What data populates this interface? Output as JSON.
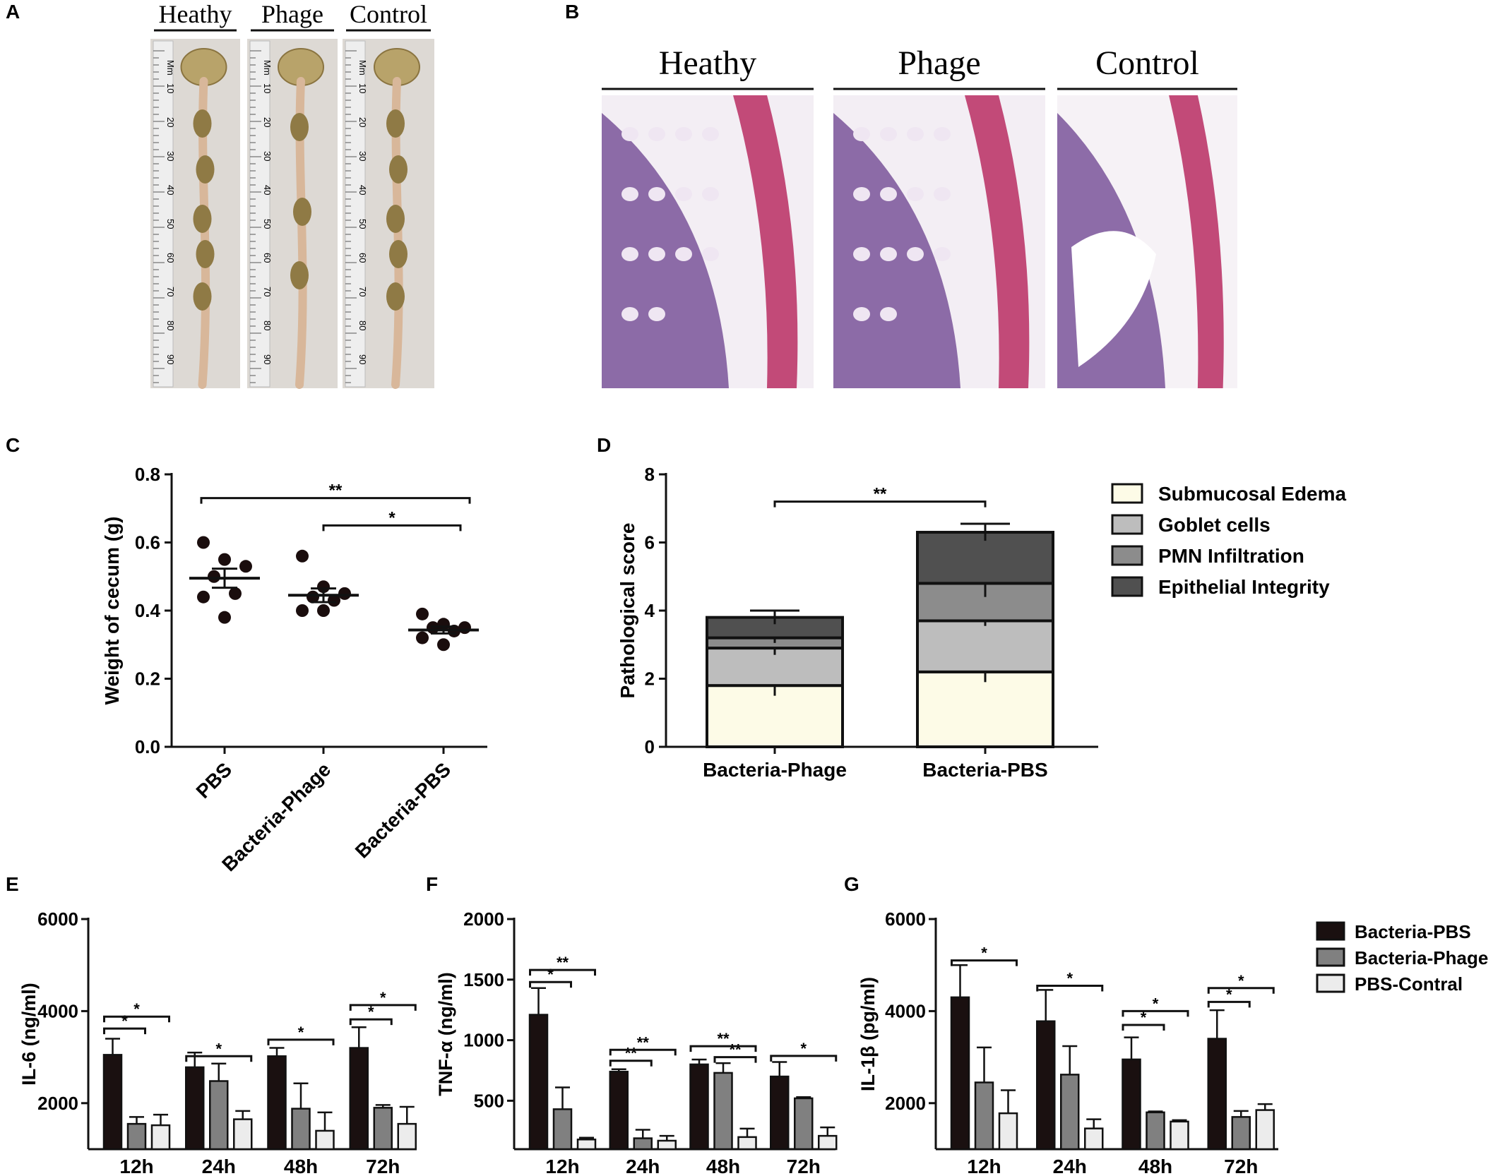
{
  "colors": {
    "ink": "#111111",
    "bacteria_pbs": "#1a1010",
    "bacteria_phage": "#808080",
    "pbs_control": "#ececec",
    "edema": "#fdfbe7",
    "goblet": "#bdbdbd",
    "pmn": "#8c8c8c",
    "epithelial": "#505050",
    "tissue_pink": "#c24a78",
    "tissue_purple": "#6a3f8e",
    "tissue_bg": "#f3eef4",
    "photo_bg": "#ddd9d4",
    "intestine": "#b8a36a"
  },
  "panels": {
    "A": {
      "letter": "A",
      "groups": [
        "Heathy",
        "Phage",
        "Control"
      ],
      "ruler_unit": "Mm",
      "ruler_ticks": [
        "10",
        "20",
        "30",
        "40",
        "50",
        "60",
        "70",
        "80",
        "90"
      ]
    },
    "B": {
      "letter": "B",
      "groups": [
        "Heathy",
        "Phage",
        "Control"
      ]
    },
    "C": {
      "letter": "C"
    },
    "D": {
      "letter": "D"
    },
    "E": {
      "letter": "E"
    },
    "F": {
      "letter": "F"
    },
    "G": {
      "letter": "G"
    }
  },
  "chart_data": [
    {
      "id": "C",
      "type": "scatter",
      "ylabel": "Weight of cecum (g)",
      "ylim": [
        0,
        0.8
      ],
      "yticks": [
        "0.0",
        "0.2",
        "0.4",
        "0.6",
        "0.8"
      ],
      "categories": [
        "PBS",
        "Bacteria-Phage",
        "Bacteria-PBS"
      ],
      "points": [
        [
          0.6,
          0.55,
          0.53,
          0.5,
          0.45,
          0.44,
          0.38
        ],
        [
          0.56,
          0.47,
          0.45,
          0.44,
          0.43,
          0.4,
          0.4
        ],
        [
          0.39,
          0.36,
          0.35,
          0.35,
          0.34,
          0.32,
          0.3
        ]
      ],
      "means": [
        0.495,
        0.445,
        0.343
      ],
      "sem": [
        0.028,
        0.02,
        0.01
      ],
      "significance": [
        {
          "from": 0,
          "to": 2,
          "y": 0.72,
          "label": "**"
        },
        {
          "from": 1,
          "to": 2,
          "y": 0.65,
          "label": "*"
        }
      ]
    },
    {
      "id": "D",
      "type": "bar",
      "stacked": true,
      "ylabel": "Pathological score",
      "ylim": [
        0,
        8
      ],
      "yticks": [
        "0",
        "2",
        "4",
        "6",
        "8"
      ],
      "categories": [
        "Bacteria-Phage",
        "Bacteria-PBS"
      ],
      "series": [
        {
          "name": "Submucosal Edema",
          "values": [
            1.8,
            2.2
          ],
          "err": [
            0.3,
            0.3
          ]
        },
        {
          "name": "Goblet cells",
          "values": [
            1.1,
            1.5
          ],
          "err": [
            0.2,
            0.15
          ]
        },
        {
          "name": "PMN Infiltration",
          "values": [
            0.3,
            1.1
          ],
          "err": [
            0.15,
            0.4
          ]
        },
        {
          "name": "Epithelial Integrity",
          "values": [
            0.6,
            1.5
          ],
          "err": [
            0.2,
            0.25
          ]
        }
      ],
      "legend_position": "right",
      "significance": [
        {
          "from": 0,
          "to": 1,
          "y": 7.2,
          "label": "**"
        }
      ]
    },
    {
      "id": "E",
      "type": "bar",
      "ylabel": "IL-6 (ng/ml)",
      "ylim": [
        1000,
        6000
      ],
      "yticks": [
        "2000",
        "4000",
        "6000"
      ],
      "categories": [
        "12h",
        "24h",
        "48h",
        "72h"
      ],
      "series": [
        {
          "name": "Bacteria-PBS",
          "values": [
            3050,
            2780,
            3020,
            3200
          ],
          "err": [
            350,
            320,
            180,
            450
          ]
        },
        {
          "name": "Bacteria-Phage",
          "values": [
            1550,
            2480,
            1880,
            1900
          ],
          "err": [
            150,
            380,
            550,
            60
          ]
        },
        {
          "name": "PBS-Contral",
          "values": [
            1520,
            1650,
            1400,
            1550
          ],
          "err": [
            230,
            180,
            400,
            370
          ]
        }
      ],
      "significance": [
        {
          "cat": 0,
          "from": 0,
          "to": 1,
          "y": 3620,
          "label": "*"
        },
        {
          "cat": 0,
          "from": 0,
          "to": 2,
          "y": 3880,
          "label": "*"
        },
        {
          "cat": 1,
          "from": 0,
          "to": 2,
          "y": 3020,
          "label": "*"
        },
        {
          "cat": 2,
          "from": 0,
          "to": 2,
          "y": 3380,
          "label": "*"
        },
        {
          "cat": 3,
          "from": 0,
          "to": 1,
          "y": 3820,
          "label": "*"
        },
        {
          "cat": 3,
          "from": 0,
          "to": 2,
          "y": 4130,
          "label": "*"
        }
      ]
    },
    {
      "id": "F",
      "type": "bar",
      "ylabel": "TNF-α (ng/ml)",
      "ylim": [
        100,
        2000
      ],
      "yticks": [
        "500",
        "1000",
        "1500",
        "2000"
      ],
      "categories": [
        "12h",
        "24h",
        "48h",
        "72h"
      ],
      "series": [
        {
          "name": "Bacteria-PBS",
          "values": [
            1210,
            740,
            800,
            700
          ],
          "err": [
            220,
            20,
            40,
            120
          ]
        },
        {
          "name": "Bacteria-Phage",
          "values": [
            430,
            190,
            730,
            520
          ],
          "err": [
            180,
            70,
            80,
            10
          ]
        },
        {
          "name": "PBS-Contral",
          "values": [
            180,
            170,
            200,
            210
          ],
          "err": [
            15,
            40,
            70,
            70
          ]
        }
      ],
      "significance": [
        {
          "cat": 0,
          "from": 0,
          "to": 1,
          "y": 1480,
          "label": "*"
        },
        {
          "cat": 0,
          "from": 0,
          "to": 2,
          "y": 1580,
          "label": "**"
        },
        {
          "cat": 1,
          "from": 0,
          "to": 1,
          "y": 830,
          "label": "**"
        },
        {
          "cat": 1,
          "from": 0,
          "to": 2,
          "y": 920,
          "label": "**"
        },
        {
          "cat": 2,
          "from": 1,
          "to": 2,
          "y": 860,
          "label": "**"
        },
        {
          "cat": 2,
          "from": 0,
          "to": 2,
          "y": 950,
          "label": "**"
        },
        {
          "cat": 3,
          "from": 0,
          "to": 2,
          "y": 870,
          "label": "*"
        }
      ]
    },
    {
      "id": "G",
      "type": "bar",
      "ylabel": "IL-1β (pg/ml)",
      "ylim": [
        1000,
        6000
      ],
      "yticks": [
        "2000",
        "4000",
        "6000"
      ],
      "categories": [
        "12h",
        "24h",
        "48h",
        "72h"
      ],
      "series": [
        {
          "name": "Bacteria-PBS",
          "values": [
            4300,
            3780,
            2950,
            3400
          ],
          "err": [
            700,
            680,
            480,
            620
          ]
        },
        {
          "name": "Bacteria-Phage",
          "values": [
            2450,
            2620,
            1800,
            1700
          ],
          "err": [
            760,
            620,
            20,
            130
          ]
        },
        {
          "name": "PBS-Contral",
          "values": [
            1780,
            1450,
            1600,
            1850
          ],
          "err": [
            500,
            200,
            30,
            130
          ]
        }
      ],
      "significance": [
        {
          "cat": 0,
          "from": 0,
          "to": 2,
          "y": 5100,
          "label": "*"
        },
        {
          "cat": 1,
          "from": 0,
          "to": 2,
          "y": 4550,
          "label": "*"
        },
        {
          "cat": 2,
          "from": 0,
          "to": 1,
          "y": 3700,
          "label": "*"
        },
        {
          "cat": 2,
          "from": 0,
          "to": 2,
          "y": 4000,
          "label": "*"
        },
        {
          "cat": 3,
          "from": 0,
          "to": 1,
          "y": 4200,
          "label": "*"
        },
        {
          "cat": 3,
          "from": 0,
          "to": 2,
          "y": 4500,
          "label": "*"
        }
      ],
      "legend_position": "right"
    }
  ]
}
